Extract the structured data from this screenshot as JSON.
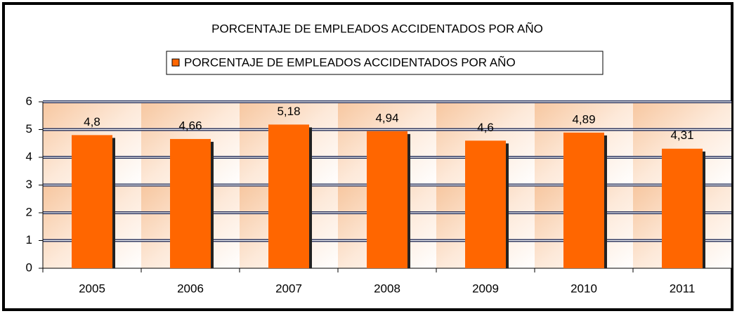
{
  "chart_data": {
    "type": "bar",
    "title": "PORCENTAJE DE EMPLEADOS ACCIDENTADOS POR AÑO",
    "categories": [
      "2005",
      "2006",
      "2007",
      "2008",
      "2009",
      "2010",
      "2011"
    ],
    "series": [
      {
        "name": "PORCENTAJE DE EMPLEADOS ACCIDENTADOS POR AÑO",
        "color": "#ff6600",
        "values": [
          4.8,
          4.66,
          5.18,
          4.94,
          4.6,
          4.89,
          4.31
        ],
        "value_labels": [
          "4,8",
          "4,66",
          "5,18",
          "4,94",
          "4,6",
          "4,89",
          "4,31"
        ]
      }
    ],
    "ylim": [
      0,
      6
    ],
    "yticks": [
      0,
      1,
      2,
      3,
      4,
      5,
      6
    ],
    "grid": true,
    "legend": "top"
  }
}
